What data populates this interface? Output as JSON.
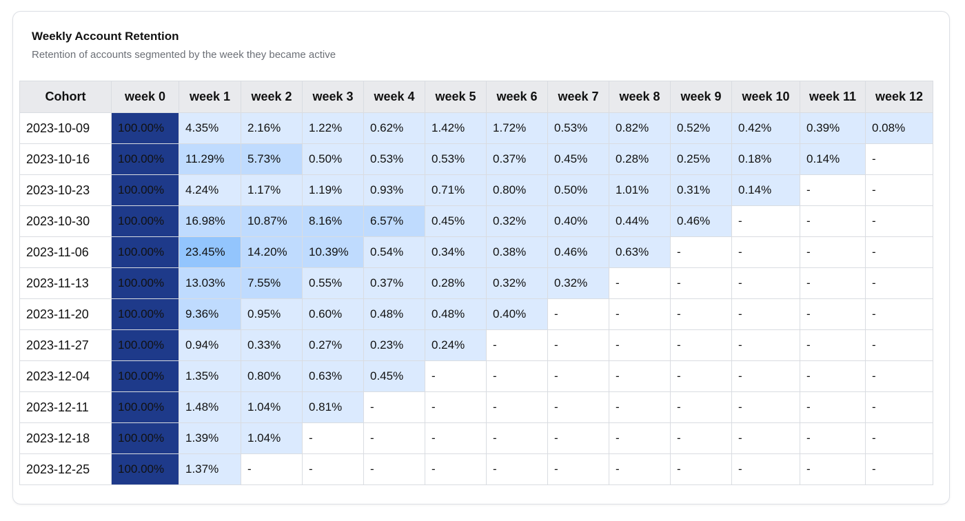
{
  "card": {
    "title": "Weekly Account Retention",
    "subtitle": "Retention of accounts segmented by the week they became active"
  },
  "colors": {
    "week0": "#1e3a8a",
    "high": "#93c5fd",
    "mid": "#bfdbfe",
    "low": "#dbeafe",
    "empty": "#ffffff",
    "header_bg": "#e9eaed",
    "grid": "#d9dce1"
  },
  "chart_data": {
    "type": "table",
    "title": "Weekly Account Retention",
    "subtitle": "Retention of accounts segmented by the week they became active",
    "columns": [
      "Cohort",
      "week 0",
      "week 1",
      "week 2",
      "week 3",
      "week 4",
      "week 5",
      "week 6",
      "week 7",
      "week 8",
      "week 9",
      "week 10",
      "week 11",
      "week 12"
    ],
    "rows": [
      {
        "cohort": "2023-10-09",
        "values": [
          "100.00%",
          "4.35%",
          "2.16%",
          "1.22%",
          "0.62%",
          "1.42%",
          "1.72%",
          "0.53%",
          "0.82%",
          "0.52%",
          "0.42%",
          "0.39%",
          "0.08%"
        ]
      },
      {
        "cohort": "2023-10-16",
        "values": [
          "100.00%",
          "11.29%",
          "5.73%",
          "0.50%",
          "0.53%",
          "0.53%",
          "0.37%",
          "0.45%",
          "0.28%",
          "0.25%",
          "0.18%",
          "0.14%",
          "-"
        ]
      },
      {
        "cohort": "2023-10-23",
        "values": [
          "100.00%",
          "4.24%",
          "1.17%",
          "1.19%",
          "0.93%",
          "0.71%",
          "0.80%",
          "0.50%",
          "1.01%",
          "0.31%",
          "0.14%",
          "-",
          "-"
        ]
      },
      {
        "cohort": "2023-10-30",
        "values": [
          "100.00%",
          "16.98%",
          "10.87%",
          "8.16%",
          "6.57%",
          "0.45%",
          "0.32%",
          "0.40%",
          "0.44%",
          "0.46%",
          "-",
          "-",
          "-"
        ]
      },
      {
        "cohort": "2023-11-06",
        "values": [
          "100.00%",
          "23.45%",
          "14.20%",
          "10.39%",
          "0.54%",
          "0.34%",
          "0.38%",
          "0.46%",
          "0.63%",
          "-",
          "-",
          "-",
          "-"
        ]
      },
      {
        "cohort": "2023-11-13",
        "values": [
          "100.00%",
          "13.03%",
          "7.55%",
          "0.55%",
          "0.37%",
          "0.28%",
          "0.32%",
          "0.32%",
          "-",
          "-",
          "-",
          "-",
          "-"
        ]
      },
      {
        "cohort": "2023-11-20",
        "values": [
          "100.00%",
          "9.36%",
          "0.95%",
          "0.60%",
          "0.48%",
          "0.48%",
          "0.40%",
          "-",
          "-",
          "-",
          "-",
          "-",
          "-"
        ]
      },
      {
        "cohort": "2023-11-27",
        "values": [
          "100.00%",
          "0.94%",
          "0.33%",
          "0.27%",
          "0.23%",
          "0.24%",
          "-",
          "-",
          "-",
          "-",
          "-",
          "-",
          "-"
        ]
      },
      {
        "cohort": "2023-12-04",
        "values": [
          "100.00%",
          "1.35%",
          "0.80%",
          "0.63%",
          "0.45%",
          "-",
          "-",
          "-",
          "-",
          "-",
          "-",
          "-",
          "-"
        ]
      },
      {
        "cohort": "2023-12-11",
        "values": [
          "100.00%",
          "1.48%",
          "1.04%",
          "0.81%",
          "-",
          "-",
          "-",
          "-",
          "-",
          "-",
          "-",
          "-",
          "-"
        ]
      },
      {
        "cohort": "2023-12-18",
        "values": [
          "100.00%",
          "1.39%",
          "1.04%",
          "-",
          "-",
          "-",
          "-",
          "-",
          "-",
          "-",
          "-",
          "-",
          "-"
        ]
      },
      {
        "cohort": "2023-12-25",
        "values": [
          "100.00%",
          "1.37%",
          "-",
          "-",
          "-",
          "-",
          "-",
          "-",
          "-",
          "-",
          "-",
          "-",
          "-"
        ]
      }
    ]
  }
}
